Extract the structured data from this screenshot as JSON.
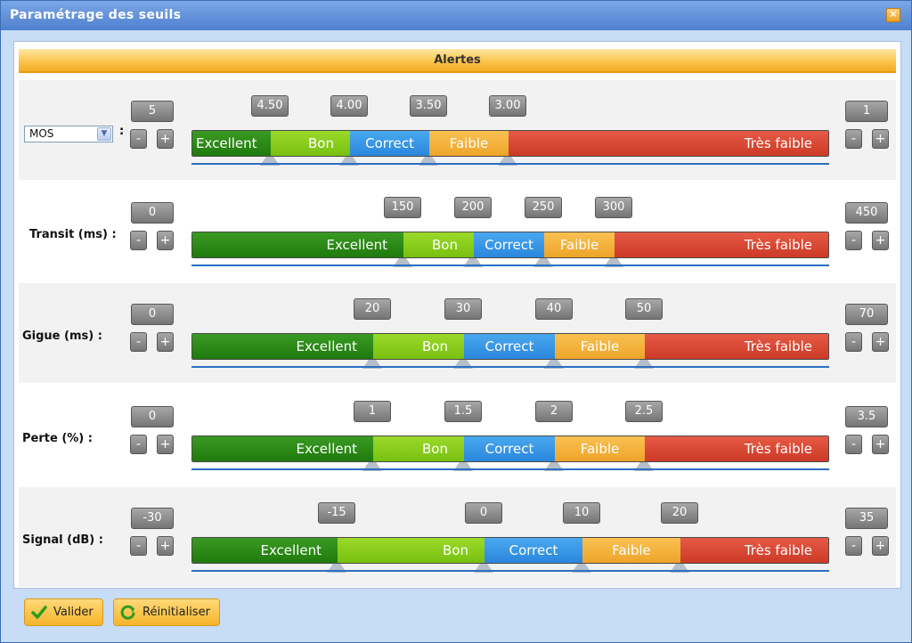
{
  "window": {
    "title": "Paramétrage des seuils",
    "close_label": "✕"
  },
  "header": {
    "title": "Alertes"
  },
  "segment_labels": {
    "excellent": "Excellent",
    "bon": "Bon",
    "correct": "Correct",
    "faible": "Faible",
    "tres": "Très faible"
  },
  "rows": [
    {
      "key": "mos",
      "label": "MOS",
      "select_value": "MOS",
      "min": "5",
      "max": "1",
      "thresholds": [
        "4.50",
        "4.00",
        "3.50",
        "3.00"
      ]
    },
    {
      "key": "transit",
      "label": "Transit (ms) :",
      "min": "0",
      "max": "450",
      "thresholds": [
        "150",
        "200",
        "250",
        "300"
      ]
    },
    {
      "key": "gigue",
      "label": "Gigue (ms) :",
      "min": "0",
      "max": "70",
      "thresholds": [
        "20",
        "30",
        "40",
        "50"
      ]
    },
    {
      "key": "perte",
      "label": "Perte (%) :",
      "min": "0",
      "max": "3.5",
      "thresholds": [
        "1",
        "1.5",
        "2",
        "2.5"
      ]
    },
    {
      "key": "signal",
      "label": "Signal (dB) :",
      "min": "-30",
      "max": "35",
      "thresholds": [
        "-15",
        "0",
        "10",
        "20"
      ]
    }
  ],
  "buttons": {
    "minus": "-",
    "plus": "+",
    "validate": "Valider",
    "reset": "Réinitialiser"
  }
}
